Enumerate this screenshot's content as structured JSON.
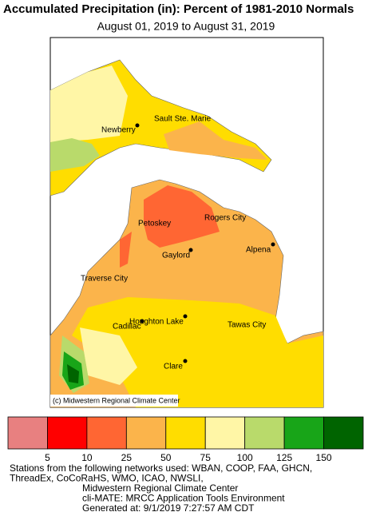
{
  "title": "Accumulated Precipitation (in): Percent of 1981-2010 Normals",
  "subtitle": "August 01, 2019 to August 31, 2019",
  "map": {
    "cities": [
      "Newberry",
      "Sault Ste. Marie",
      "Rogers City",
      "Petoskey",
      "Gaylord",
      "Alpena",
      "Traverse City",
      "Houghton Lake",
      "Cadillac",
      "Tawas City",
      "Clare"
    ],
    "copyright": "(c) Midwestern Regional Climate Center"
  },
  "legend": {
    "colors": [
      "#e88080",
      "#ff0000",
      "#ff6633",
      "#fbb44b",
      "#ffdd00",
      "#fff6a6",
      "#b9da6b",
      "#18a518",
      "#006400"
    ],
    "thresholds": [
      5,
      10,
      25,
      50,
      75,
      100,
      125,
      150
    ]
  },
  "footer": [
    "Stations from the following networks used: WBAN, COOP, FAA, GHCN,",
    "ThreadEx, CoCoRaHS, WMO, ICAO, NWSLI,",
    "Midwestern Regional Climate Center",
    "cli-MATE: MRCC Application Tools Environment",
    "Generated at: 9/1/2019 7:27:57 AM CDT"
  ]
}
